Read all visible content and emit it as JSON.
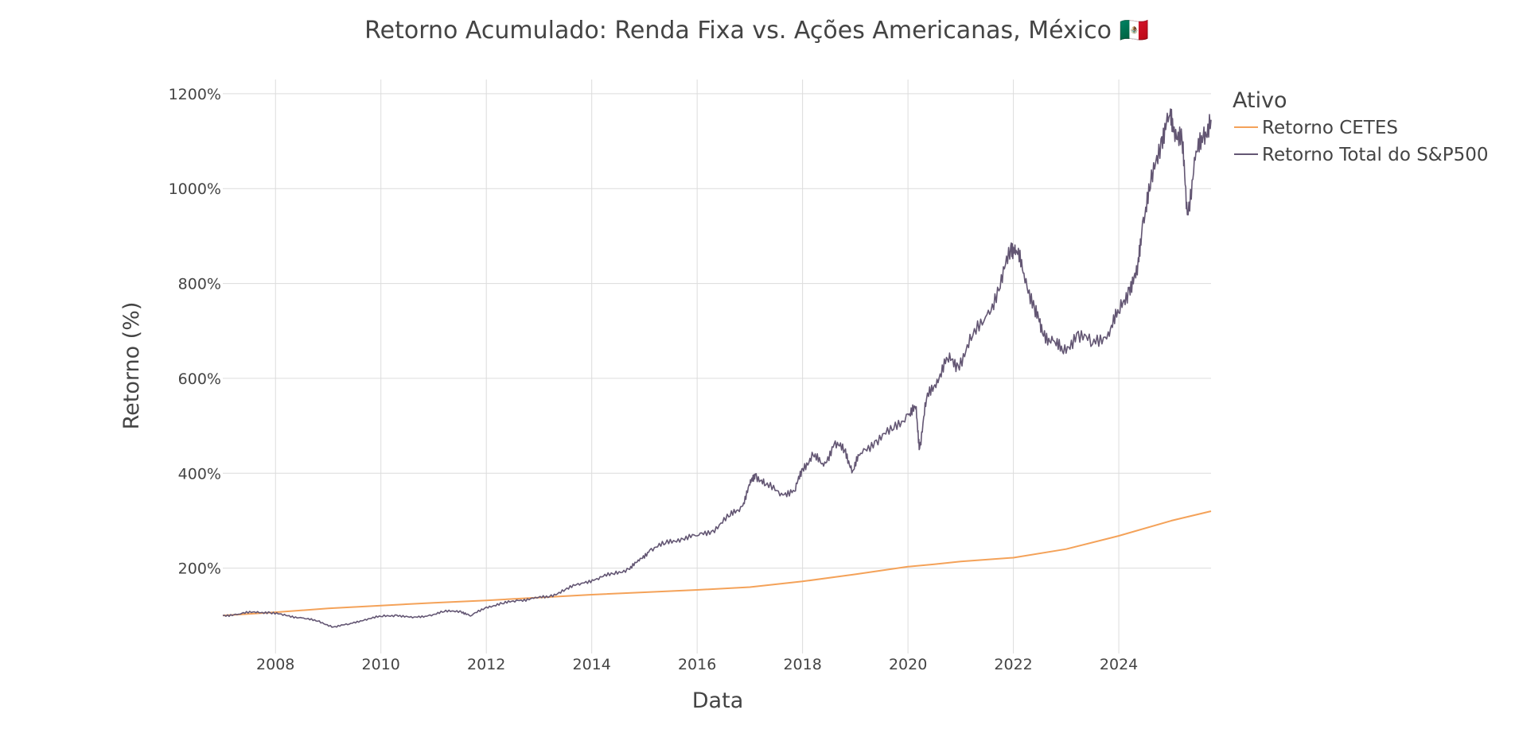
{
  "chart_data": {
    "type": "line",
    "title": "Retorno Acumulado: Renda Fixa vs. Ações Americanas, México 🇲🇽",
    "xlabel": "Data",
    "ylabel": "Retorno (%)",
    "xlim": [
      2007.0,
      2025.75
    ],
    "ylim": [
      20,
      1230
    ],
    "x_ticks": [
      2008,
      2010,
      2012,
      2014,
      2016,
      2018,
      2020,
      2022,
      2024
    ],
    "x_tick_labels": [
      "2008",
      "2010",
      "2012",
      "2014",
      "2016",
      "2018",
      "2020",
      "2022",
      "2024"
    ],
    "y_ticks": [
      200,
      400,
      600,
      800,
      1000,
      1200
    ],
    "y_tick_labels": [
      "200%",
      "400%",
      "600%",
      "800%",
      "1000%",
      "1200%"
    ],
    "grid": true,
    "legend": {
      "title": "Ativo",
      "position": "top-right-outside"
    },
    "series": [
      {
        "name": "Retorno CETES",
        "color": "#f4a259",
        "points": [
          [
            2007.0,
            100
          ],
          [
            2008.0,
            107
          ],
          [
            2009.0,
            115
          ],
          [
            2010.0,
            121
          ],
          [
            2011.0,
            127
          ],
          [
            2012.0,
            132
          ],
          [
            2013.0,
            138
          ],
          [
            2014.0,
            144
          ],
          [
            2015.0,
            149
          ],
          [
            2016.0,
            154
          ],
          [
            2017.0,
            160
          ],
          [
            2018.0,
            172
          ],
          [
            2019.0,
            187
          ],
          [
            2020.0,
            203
          ],
          [
            2020.5,
            208
          ],
          [
            2021.0,
            214
          ],
          [
            2022.0,
            222
          ],
          [
            2023.0,
            240
          ],
          [
            2024.0,
            268
          ],
          [
            2025.0,
            300
          ],
          [
            2025.75,
            320
          ]
        ]
      },
      {
        "name": "Retorno Total do S&P500",
        "color": "#635673",
        "points": [
          [
            2007.0,
            100
          ],
          [
            2007.3,
            103
          ],
          [
            2007.6,
            108
          ],
          [
            2007.9,
            106
          ],
          [
            2008.2,
            100
          ],
          [
            2008.5,
            95
          ],
          [
            2008.8,
            88
          ],
          [
            2009.1,
            76
          ],
          [
            2009.4,
            82
          ],
          [
            2009.7,
            92
          ],
          [
            2010.0,
            98
          ],
          [
            2010.3,
            101
          ],
          [
            2010.6,
            95
          ],
          [
            2010.9,
            100
          ],
          [
            2011.2,
            108
          ],
          [
            2011.5,
            110
          ],
          [
            2011.7,
            99
          ],
          [
            2012.0,
            118
          ],
          [
            2012.3,
            125
          ],
          [
            2012.6,
            132
          ],
          [
            2012.9,
            136
          ],
          [
            2013.2,
            140
          ],
          [
            2013.5,
            155
          ],
          [
            2013.8,
            168
          ],
          [
            2014.1,
            178
          ],
          [
            2014.4,
            188
          ],
          [
            2014.7,
            198
          ],
          [
            2014.9,
            215
          ],
          [
            2015.1,
            238
          ],
          [
            2015.4,
            252
          ],
          [
            2015.7,
            263
          ],
          [
            2016.0,
            268
          ],
          [
            2016.3,
            280
          ],
          [
            2016.6,
            308
          ],
          [
            2016.85,
            330
          ],
          [
            2017.0,
            375
          ],
          [
            2017.1,
            398
          ],
          [
            2017.3,
            375
          ],
          [
            2017.6,
            358
          ],
          [
            2017.85,
            362
          ],
          [
            2018.0,
            410
          ],
          [
            2018.2,
            438
          ],
          [
            2018.4,
            415
          ],
          [
            2018.6,
            462
          ],
          [
            2018.8,
            448
          ],
          [
            2018.95,
            405
          ],
          [
            2019.1,
            442
          ],
          [
            2019.4,
            470
          ],
          [
            2019.7,
            490
          ],
          [
            2020.0,
            525
          ],
          [
            2020.15,
            535
          ],
          [
            2020.22,
            452
          ],
          [
            2020.35,
            555
          ],
          [
            2020.55,
            598
          ],
          [
            2020.75,
            640
          ],
          [
            2020.95,
            628
          ],
          [
            2021.2,
            680
          ],
          [
            2021.5,
            735
          ],
          [
            2021.75,
            790
          ],
          [
            2021.95,
            880
          ],
          [
            2022.05,
            870
          ],
          [
            2022.2,
            822
          ],
          [
            2022.4,
            748
          ],
          [
            2022.55,
            695
          ],
          [
            2022.75,
            680
          ],
          [
            2022.95,
            652
          ],
          [
            2023.2,
            695
          ],
          [
            2023.5,
            672
          ],
          [
            2023.8,
            698
          ],
          [
            2024.0,
            738
          ],
          [
            2024.2,
            792
          ],
          [
            2024.35,
            818
          ],
          [
            2024.45,
            930
          ],
          [
            2024.6,
            1000
          ],
          [
            2024.8,
            1105
          ],
          [
            2024.95,
            1150
          ],
          [
            2025.05,
            1130
          ],
          [
            2025.2,
            1100
          ],
          [
            2025.3,
            945
          ],
          [
            2025.45,
            1060
          ],
          [
            2025.6,
            1110
          ],
          [
            2025.75,
            1145
          ]
        ]
      }
    ]
  }
}
